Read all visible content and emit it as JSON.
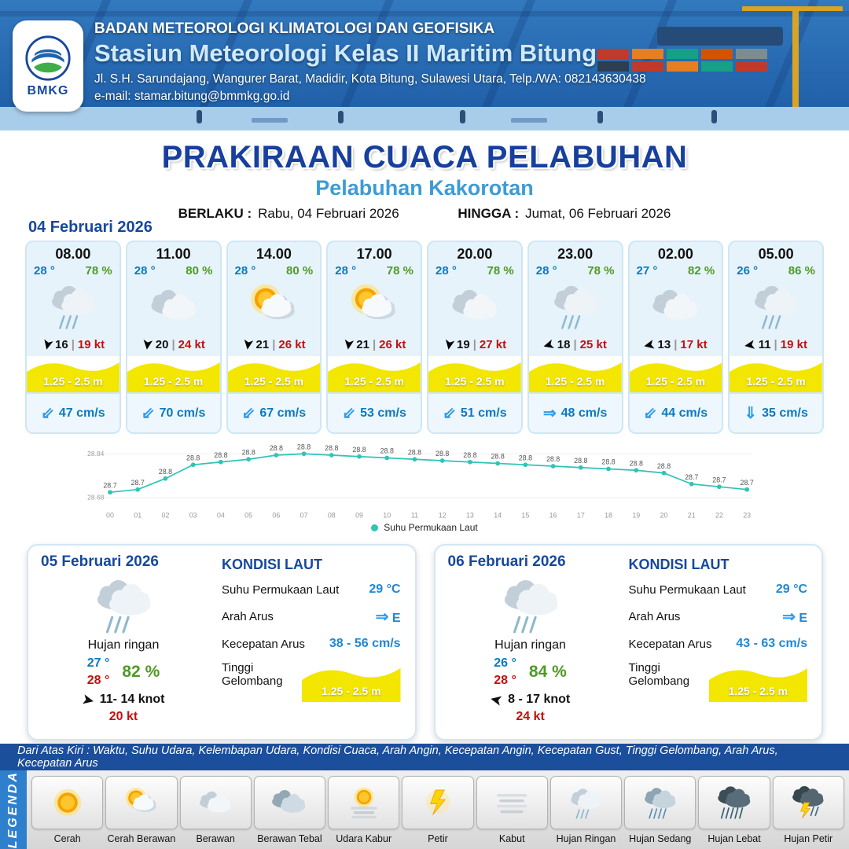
{
  "header": {
    "org": "BADAN METEOROLOGI KLIMATOLOGI DAN GEOFISIKA",
    "station": "Stasiun Meteorologi Kelas II Maritim Bitung",
    "address": "Jl. S.H. Sarundajang, Wangurer Barat, Madidir, Kota Bitung, Sulawesi Utara, Telp./WA: 082143630438",
    "email": "e-mail: stamar.bitung@bmmkg.go.id",
    "logo_text": "BMKG"
  },
  "title": {
    "main": "PRAKIRAAN CUACA PELABUHAN",
    "subtitle": "Pelabuhan Kakorotan",
    "berlaku_label": "BERLAKU :",
    "berlaku_value": "Rabu, 04 Februari 2026",
    "hingga_label": "HINGGA :",
    "hingga_value": "Jumat, 06 Februari 2026"
  },
  "glyphs": {
    "wind": "➤"
  },
  "forecast": {
    "date_label": "04 Februari 2026",
    "sep": "|",
    "cards": [
      {
        "time": "08.00",
        "temp": "28 °",
        "humidity": "78 %",
        "icon": "hujan-ringan",
        "wind": "16",
        "gust": "19 kt",
        "wind_deg": 103,
        "wave": "1.25 - 2.5 m",
        "current_arrow": "⇙",
        "current": "47 cm/s"
      },
      {
        "time": "11.00",
        "temp": "28 °",
        "humidity": "80 %",
        "icon": "berawan",
        "wind": "20",
        "gust": "24 kt",
        "wind_deg": 97,
        "wave": "1.25 - 2.5 m",
        "current_arrow": "⇙",
        "current": "70 cm/s"
      },
      {
        "time": "14.00",
        "temp": "28 °",
        "humidity": "80 %",
        "icon": "cerah-berawan",
        "wind": "21",
        "gust": "26 kt",
        "wind_deg": 98,
        "wave": "1.25 - 2.5 m",
        "current_arrow": "⇙",
        "current": "67 cm/s"
      },
      {
        "time": "17.00",
        "temp": "28 °",
        "humidity": "78 %",
        "icon": "cerah-berawan",
        "wind": "21",
        "gust": "26 kt",
        "wind_deg": 98,
        "wave": "1.25 - 2.5 m",
        "current_arrow": "⇙",
        "current": "53 cm/s"
      },
      {
        "time": "20.00",
        "temp": "28 °",
        "humidity": "78 %",
        "icon": "berawan",
        "wind": "19",
        "gust": "27 kt",
        "wind_deg": 100,
        "wave": "1.25 - 2.5 m",
        "current_arrow": "⇙",
        "current": "51 cm/s"
      },
      {
        "time": "23.00",
        "temp": "28 °",
        "humidity": "78 %",
        "icon": "hujan-ringan",
        "wind": "18",
        "gust": "25 kt",
        "wind_deg": 165,
        "wave": "1.25 - 2.5 m",
        "current_arrow": "⇒",
        "current": "48 cm/s"
      },
      {
        "time": "02.00",
        "temp": "27 °",
        "humidity": "82 %",
        "icon": "berawan",
        "wind": "13",
        "gust": "17 kt",
        "wind_deg": 168,
        "wave": "1.25 - 2.5 m",
        "current_arrow": "⇙",
        "current": "44 cm/s"
      },
      {
        "time": "05.00",
        "temp": "26 °",
        "humidity": "86 %",
        "icon": "hujan-ringan",
        "wind": "11",
        "gust": "19 kt",
        "wind_deg": 172,
        "wave": "1.25 - 2.5 m",
        "current_arrow": "⇓",
        "current": "35 cm/s"
      }
    ]
  },
  "chart_data": {
    "type": "line",
    "legend": "Suhu Permukaan Laut",
    "x": [
      "00",
      "01",
      "02",
      "03",
      "04",
      "05",
      "06",
      "07",
      "08",
      "09",
      "10",
      "11",
      "12",
      "13",
      "14",
      "15",
      "16",
      "17",
      "18",
      "19",
      "20",
      "21",
      "22",
      "23"
    ],
    "values": [
      28.7,
      28.71,
      28.75,
      28.8,
      28.81,
      28.82,
      28.835,
      28.84,
      28.835,
      28.83,
      28.825,
      28.82,
      28.815,
      28.81,
      28.805,
      28.8,
      28.795,
      28.79,
      28.785,
      28.78,
      28.77,
      28.73,
      28.72,
      28.71
    ],
    "labels": [
      "28.7",
      "28.7",
      "28.8",
      "28.8",
      "28.8",
      "28.8",
      "28.8",
      "28.8",
      "28.8",
      "28.8",
      "28.8",
      "28.8",
      "28.8",
      "28.8",
      "28.8",
      "28.8",
      "28.8",
      "28.8",
      "28.8",
      "28.8",
      "28.8",
      "28.7",
      "28.7",
      "28.7"
    ],
    "ylim": [
      28.68,
      28.84
    ],
    "yticks": [
      "28.84",
      "28.68"
    ],
    "line_color": "#2ec4b6",
    "grid": false,
    "legend_position": "bottom"
  },
  "daily": [
    {
      "date": "05 Februari 2026",
      "icon": "hujan-ringan",
      "condition": "Hujan ringan",
      "temp_low": "27 °",
      "temp_high": "28 °",
      "humidity": "82 %",
      "wind_range": "11- 14 knot",
      "gust": "20 kt",
      "wind_deg": 12,
      "sea": {
        "heading": "KONDISI LAUT",
        "sst_label": "Suhu Permukaan Laut",
        "sst_value": "29 °C",
        "current_dir_label": "Arah Arus",
        "current_dir_arrow": "⇒",
        "current_dir_value": "E",
        "current_speed_label": "Kecepatan Arus",
        "current_speed_value": "38 - 56 cm/s",
        "wave_label": "Tinggi Gelombang",
        "wave_value": "1.25 - 2.5 m"
      }
    },
    {
      "date": "06 Februari 2026",
      "icon": "hujan-ringan",
      "condition": "Hujan ringan",
      "temp_low": "26 °",
      "temp_high": "28 °",
      "humidity": "84 %",
      "wind_range": "8  - 17 knot",
      "gust": "24 kt",
      "wind_deg": 192,
      "sea": {
        "heading": "KONDISI LAUT",
        "sst_label": "Suhu Permukaan Laut",
        "sst_value": "29 °C",
        "current_dir_label": "Arah Arus",
        "current_dir_arrow": "⇒",
        "current_dir_value": "E",
        "current_speed_label": "Kecepatan Arus",
        "current_speed_value": "43 - 63 cm/s",
        "wave_label": "Tinggi Gelombang",
        "wave_value": "1.25 - 2.5 m"
      }
    }
  ],
  "legend": {
    "strip": "Dari Atas Kiri : Waktu, Suhu Udara, Kelembapan Udara, Kondisi Cuaca, Arah Angin, Kecepatan Angin, Kecepatan Gust, Tinggi Gelombang, Arah Arus, Kecepatan Arus",
    "sidebar": "LEGENDA",
    "items": [
      {
        "label": "Cerah",
        "icon": "cerah"
      },
      {
        "label": "Cerah Berawan",
        "icon": "cerah-berawan"
      },
      {
        "label": "Berawan",
        "icon": "berawan"
      },
      {
        "label": "Berawan Tebal",
        "icon": "berawan-tebal"
      },
      {
        "label": "Udara Kabur",
        "icon": "udara-kabur"
      },
      {
        "label": "Petir",
        "icon": "petir"
      },
      {
        "label": "Kabut",
        "icon": "kabut"
      },
      {
        "label": "Hujan Ringan",
        "icon": "hujan-ringan"
      },
      {
        "label": "Hujan Sedang",
        "icon": "hujan-sedang"
      },
      {
        "label": "Hujan Lebat",
        "icon": "hujan-lebat"
      },
      {
        "label": "Hujan Petir",
        "icon": "hujan-petir"
      }
    ]
  },
  "colors": {
    "primary_blue": "#16489c",
    "subtitle_blue": "#3d9bd5",
    "wave_yellow": "#f3e600",
    "humidity_green": "#4e9b22",
    "gust_red": "#c21010",
    "temp_blue": "#0a7ac0",
    "sst_line": "#2ec4b6"
  }
}
